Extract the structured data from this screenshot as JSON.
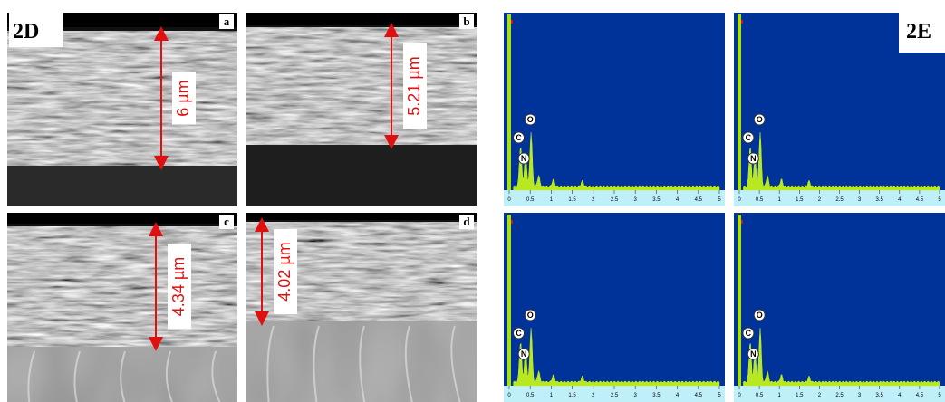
{
  "figure_2d": {
    "label": "2D",
    "panels": [
      {
        "letter": "a",
        "thickness": "6 µm"
      },
      {
        "letter": "b",
        "thickness": "5.21 µm"
      },
      {
        "letter": "c",
        "thickness": "4.34 µm"
      },
      {
        "letter": "d",
        "thickness": "4.02 µm"
      }
    ]
  },
  "figure_2e": {
    "label": "2E",
    "elements": [
      "C",
      "O",
      "N"
    ],
    "axis_ticks": [
      "0",
      "0.5",
      "1",
      "1.5",
      "2",
      "2.5",
      "3",
      "3.5",
      "4",
      "4.5",
      "5"
    ]
  }
}
